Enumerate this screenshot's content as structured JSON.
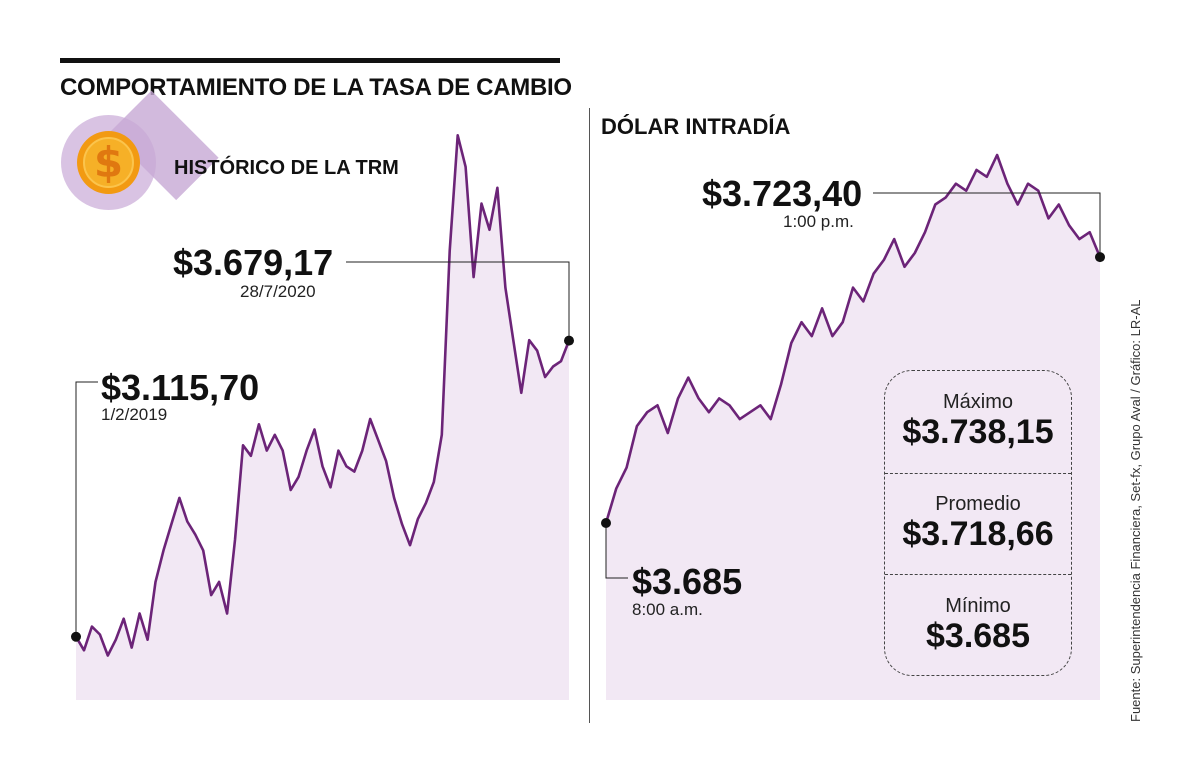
{
  "title": "COMPORTAMIENTO DE LA TASA DE CAMBIO",
  "colors": {
    "line": "#6c2478",
    "fill": "#f2e8f4",
    "coin": "#f29a12"
  },
  "icon": "dollar-coin-icon",
  "chart_data": [
    {
      "type": "area",
      "title": "HISTÓRICO DE LA TRM",
      "start": {
        "value": "$3.115,70",
        "date": "1/2/2019",
        "y": 3115.7
      },
      "end": {
        "value": "$3.679,17",
        "date": "28/7/2020",
        "y": 3679.17
      },
      "series_y": [
        3115.7,
        3090,
        3135,
        3120,
        3080,
        3110,
        3150,
        3095,
        3160,
        3110,
        3220,
        3280,
        3330,
        3380,
        3335,
        3310,
        3280,
        3195,
        3220,
        3160,
        3300,
        3480,
        3460,
        3520,
        3470,
        3500,
        3470,
        3395,
        3420,
        3470,
        3510,
        3440,
        3400,
        3470,
        3440,
        3430,
        3470,
        3530,
        3490,
        3450,
        3380,
        3330,
        3290,
        3340,
        3370,
        3410,
        3500,
        3850,
        4070,
        4010,
        3800,
        3940,
        3890,
        3970,
        3780,
        3680,
        3580,
        3680,
        3660,
        3610,
        3630,
        3640,
        3679.17
      ]
    },
    {
      "type": "area",
      "title": "DÓLAR INTRADÍA",
      "start": {
        "value": "$3.685",
        "time": "8:00 a.m.",
        "y": 3685
      },
      "end": {
        "value": "$3.723,40",
        "time": "1:00 p.m.",
        "y": 3723.4
      },
      "series_y": [
        3685,
        3690,
        3693,
        3699,
        3701,
        3702,
        3698,
        3703,
        3706,
        3703,
        3701,
        3703,
        3702,
        3700,
        3701,
        3702,
        3700,
        3705,
        3711,
        3714,
        3712,
        3716,
        3712,
        3714,
        3719,
        3717,
        3721,
        3723,
        3726,
        3722,
        3724,
        3727,
        3731,
        3732,
        3734,
        3733,
        3736,
        3735,
        3738.15,
        3734,
        3731,
        3734,
        3733,
        3729,
        3731,
        3728,
        3726,
        3727,
        3723.4
      ],
      "stats": {
        "max_label": "Máximo",
        "max_value": "$3.738,15",
        "avg_label": "Promedio",
        "avg_value": "$3.718,66",
        "min_label": "Mínimo",
        "min_value": "$3.685"
      }
    }
  ],
  "source": "Fuente: Superintendencia Financiera, Set-fx, Grupo Aval / Gráfico: LR-AL"
}
